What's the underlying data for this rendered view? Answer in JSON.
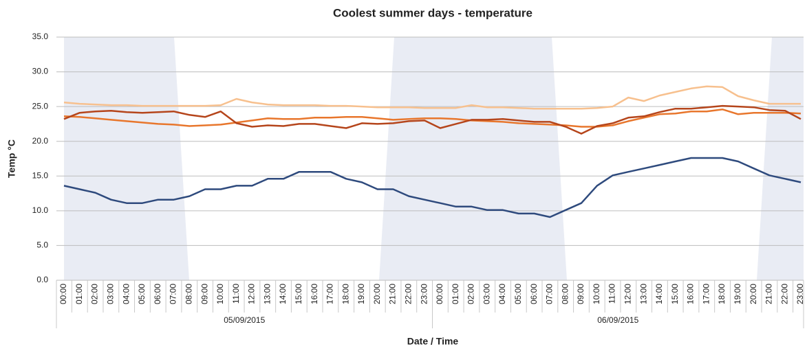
{
  "chart_data": {
    "type": "line",
    "title": "Coolest summer days - temperature",
    "y_label": "Temp °C",
    "x_label": "Date / Time",
    "categories": [
      "00:00",
      "01:00",
      "02:00",
      "03:00",
      "04:00",
      "05:00",
      "06:00",
      "07:00",
      "08:00",
      "09:00",
      "10:00",
      "11:00",
      "12:00",
      "13:00",
      "14:00",
      "15:00",
      "16:00",
      "17:00",
      "18:00",
      "19:00",
      "20:00",
      "21:00",
      "22:00",
      "23:00",
      "00:00",
      "01:00",
      "02:00",
      "03:00",
      "04:00",
      "05:00",
      "06:00",
      "07:00",
      "08:00",
      "09:00",
      "10:00",
      "11:00",
      "12:00",
      "13:00",
      "14:00",
      "15:00",
      "16:00",
      "17:00",
      "18:00",
      "19:00",
      "20:00",
      "21:00",
      "22:00",
      "23:00"
    ],
    "x_groups": [
      "05/09/2015",
      "06/09/2015"
    ],
    "series": [
      {
        "color": "#f7c08e",
        "values": [
          25.6,
          25.4,
          25.3,
          25.2,
          25.2,
          25.1,
          25.1,
          25.1,
          25.1,
          25.1,
          25.2,
          26.1,
          25.6,
          25.3,
          25.2,
          25.2,
          25.2,
          25.1,
          25.1,
          25.0,
          24.9,
          24.9,
          24.9,
          24.8,
          24.8,
          24.8,
          25.2,
          24.9,
          24.9,
          24.8,
          24.7,
          24.7,
          24.7,
          24.7,
          24.8,
          25.0,
          26.3,
          25.8,
          26.6,
          27.1,
          27.6,
          27.9,
          27.8,
          26.5,
          25.9,
          25.4,
          25.4,
          25.4
        ]
      },
      {
        "color": "#e8762c",
        "values": [
          23.6,
          23.5,
          23.3,
          23.1,
          22.9,
          22.7,
          22.5,
          22.4,
          22.2,
          22.3,
          22.4,
          22.7,
          23.0,
          23.3,
          23.2,
          23.2,
          23.4,
          23.4,
          23.5,
          23.5,
          23.3,
          23.1,
          23.2,
          23.3,
          23.3,
          23.2,
          23.0,
          22.9,
          22.8,
          22.6,
          22.5,
          22.4,
          22.3,
          22.1,
          22.1,
          22.3,
          22.9,
          23.4,
          23.9,
          24.0,
          24.3,
          24.3,
          24.6,
          23.9,
          24.1,
          24.1,
          24.1,
          24.0
        ]
      },
      {
        "color": "#b5451b",
        "values": [
          23.2,
          24.1,
          24.3,
          24.4,
          24.2,
          24.1,
          24.2,
          24.3,
          23.8,
          23.5,
          24.3,
          22.6,
          22.1,
          22.3,
          22.2,
          22.5,
          22.5,
          22.2,
          21.9,
          22.6,
          22.5,
          22.6,
          22.9,
          23.0,
          21.9,
          22.5,
          23.1,
          23.1,
          23.2,
          23.0,
          22.8,
          22.8,
          22.1,
          21.1,
          22.2,
          22.6,
          23.4,
          23.6,
          24.2,
          24.7,
          24.7,
          24.9,
          25.1,
          25.0,
          24.9,
          24.5,
          24.4,
          23.2
        ]
      },
      {
        "color": "#2e4a7d",
        "values": [
          13.6,
          13.1,
          12.6,
          11.6,
          11.1,
          11.1,
          11.6,
          11.6,
          12.1,
          13.1,
          13.1,
          13.6,
          13.6,
          14.6,
          14.6,
          15.6,
          15.6,
          15.6,
          14.6,
          14.1,
          13.1,
          13.1,
          12.1,
          11.6,
          11.1,
          10.6,
          10.6,
          10.1,
          10.1,
          9.6,
          9.6,
          9.1,
          10.1,
          11.1,
          13.6,
          15.1,
          15.6,
          16.1,
          16.6,
          17.1,
          17.6,
          17.6,
          17.6,
          17.1,
          16.1,
          15.1,
          14.6,
          14.1
        ]
      }
    ],
    "ylim": [
      0,
      35
    ],
    "yticks": [
      {
        "value": 0,
        "label": "0.0"
      },
      {
        "value": 5,
        "label": "5.0"
      },
      {
        "value": 10,
        "label": "10.0"
      },
      {
        "value": 15,
        "label": "15.0"
      },
      {
        "value": 20,
        "label": "20.0"
      },
      {
        "value": 25,
        "label": "25.0"
      },
      {
        "value": 30,
        "label": "30.0"
      },
      {
        "value": 35,
        "label": "35.0"
      }
    ],
    "grid": true
  }
}
